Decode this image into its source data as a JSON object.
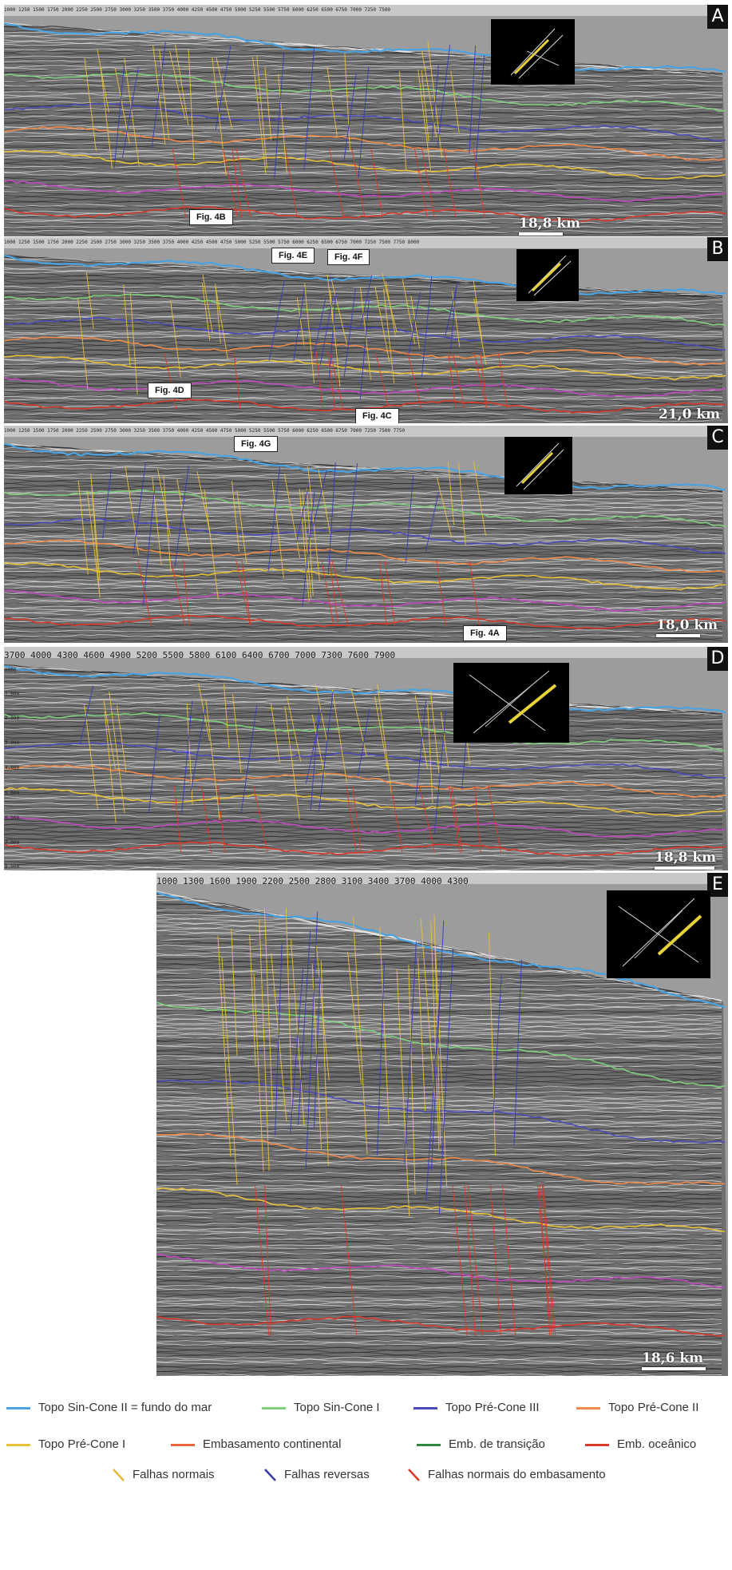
{
  "panels": [
    {
      "id": "A",
      "letter": "A",
      "scale": "18,8 km",
      "axis": "1000 1250 1500 1750 2000 2250 2500 2750 3000 3250 3500 3750 4000 4250 4500 4750 5000 5250 5500 5750 6000 6250 6500 6750 7000 7250 7500",
      "fig_labels": [
        {
          "id": "4b",
          "text": "Fig. 4B"
        }
      ]
    },
    {
      "id": "B",
      "letter": "B",
      "scale": "21,0 km",
      "axis": "1000 1250 1500 1750 2000 2250 2500 2750 3000 3250 3500 3750 4000 4250 4500 4750 5000 5250 5500 5750 6000 6250 6500 6750 7000 7250 7500 7750 8000",
      "fig_labels": [
        {
          "id": "4e",
          "text": "Fig. 4E"
        },
        {
          "id": "4f",
          "text": "Fig. 4F"
        },
        {
          "id": "4d",
          "text": "Fig. 4D"
        },
        {
          "id": "4c",
          "text": "Fig. 4C"
        }
      ]
    },
    {
      "id": "C",
      "letter": "C",
      "scale": "18,0 km",
      "axis": "1000 1250 1500 1750 2000 2250 2500 2750 3000 3250 3500 3750 4000 4250 4500 4750 5000 5250 5500 5750 6000 6250 6500 6750 7000 7250 7500 7750",
      "fig_labels": [
        {
          "id": "4g",
          "text": "Fig. 4G"
        },
        {
          "id": "4a",
          "text": "Fig. 4A"
        }
      ]
    },
    {
      "id": "D",
      "letter": "D",
      "scale": "18,8 km",
      "axis": "3700  4000  4300  4600  4900  5200  5500  5800  6100  6400  6700  7000  7300  7600  7900",
      "depths": [
        "0000",
        "1.000",
        "2.000",
        "3.000",
        "4.000",
        "5.000",
        "6.000",
        "7.000",
        "8.000"
      ],
      "fig_labels": []
    },
    {
      "id": "E",
      "letter": "E",
      "scale": "18,6 km",
      "axis": "1000  1300  1600  1900  2200  2500  2800  3100  3400  3700  4000  4300",
      "fig_labels": []
    }
  ],
  "legend": {
    "items": [
      {
        "label": "Topo Sin-Cone II = fundo do mar",
        "color": "#4aa3e0",
        "kind": "line"
      },
      {
        "label": "Topo Sin-Cone I",
        "color": "#7ed07e",
        "kind": "line"
      },
      {
        "label": "Topo Pré-Cone III",
        "color": "#4a4ab8",
        "kind": "line"
      },
      {
        "label": "Topo Pré-Cone II",
        "color": "#f08a4b",
        "kind": "line"
      },
      {
        "label": "Topo Pré-Cone I",
        "color": "#e8c13a",
        "kind": "line"
      },
      {
        "label": "Embasamento continental",
        "color": "#e8663a",
        "kind": "line"
      },
      {
        "label": "Emb. de transição",
        "color": "#2e8a3a",
        "kind": "line"
      },
      {
        "label": "Emb. oceânico",
        "color": "#d83a2a",
        "kind": "line"
      },
      {
        "label": "Falhas normais",
        "color": "#e8b83a",
        "kind": "fault"
      },
      {
        "label": "Falhas reversas",
        "color": "#3a3aa8",
        "kind": "fault"
      },
      {
        "label": "Falhas normais do embasamento",
        "color": "#d83a2a",
        "kind": "fault"
      }
    ]
  }
}
